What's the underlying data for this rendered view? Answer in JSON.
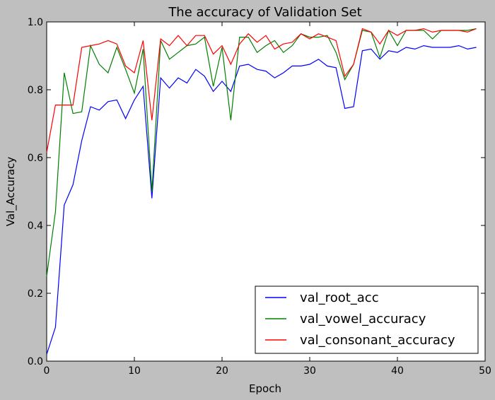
{
  "chart_data": {
    "type": "line",
    "title": "The accuracy of Validation Set",
    "xlabel": "Epoch",
    "ylabel": "Val_Accuracy",
    "xlim": [
      0,
      50
    ],
    "ylim": [
      0.0,
      1.0
    ],
    "xticks": [
      0,
      10,
      20,
      30,
      40,
      50
    ],
    "yticks": [
      0.0,
      0.2,
      0.4,
      0.6,
      0.8,
      1.0
    ],
    "ytick_labels": [
      "0.0",
      "0.2",
      "0.4",
      "0.6",
      "0.8",
      "1.0"
    ],
    "grid": false,
    "legend_position": "bottom-right",
    "x": [
      0,
      1,
      2,
      3,
      4,
      5,
      6,
      7,
      8,
      9,
      10,
      11,
      12,
      13,
      14,
      15,
      16,
      17,
      18,
      19,
      20,
      21,
      22,
      23,
      24,
      25,
      26,
      27,
      28,
      29,
      30,
      31,
      32,
      33,
      34,
      35,
      36,
      37,
      38,
      39,
      40,
      41,
      42,
      43,
      44,
      45,
      46,
      47,
      48,
      49
    ],
    "series": [
      {
        "name": "val_root_acc",
        "color": "#0000ff",
        "values": [
          0.02,
          0.1,
          0.46,
          0.52,
          0.65,
          0.75,
          0.74,
          0.765,
          0.77,
          0.715,
          0.77,
          0.81,
          0.48,
          0.835,
          0.805,
          0.835,
          0.82,
          0.86,
          0.84,
          0.795,
          0.825,
          0.795,
          0.87,
          0.875,
          0.86,
          0.855,
          0.835,
          0.85,
          0.87,
          0.87,
          0.875,
          0.89,
          0.87,
          0.865,
          0.745,
          0.75,
          0.915,
          0.92,
          0.89,
          0.915,
          0.91,
          0.925,
          0.92,
          0.93,
          0.925,
          0.925,
          0.925,
          0.93,
          0.92,
          0.925
        ]
      },
      {
        "name": "val_vowel_accuracy",
        "color": "#008000",
        "values": [
          0.25,
          0.44,
          0.85,
          0.73,
          0.735,
          0.93,
          0.875,
          0.85,
          0.925,
          0.86,
          0.79,
          0.92,
          0.5,
          0.945,
          0.89,
          0.91,
          0.93,
          0.935,
          0.955,
          0.81,
          0.925,
          0.71,
          0.955,
          0.955,
          0.91,
          0.93,
          0.945,
          0.91,
          0.93,
          0.965,
          0.955,
          0.955,
          0.96,
          0.91,
          0.83,
          0.875,
          0.975,
          0.97,
          0.895,
          0.975,
          0.93,
          0.975,
          0.975,
          0.975,
          0.95,
          0.975,
          0.975,
          0.975,
          0.975,
          0.98
        ]
      },
      {
        "name": "val_consonant_accuracy",
        "color": "#ff0000",
        "values": [
          0.615,
          0.755,
          0.755,
          0.755,
          0.925,
          0.93,
          0.935,
          0.945,
          0.935,
          0.87,
          0.85,
          0.945,
          0.71,
          0.95,
          0.93,
          0.96,
          0.93,
          0.96,
          0.96,
          0.905,
          0.93,
          0.875,
          0.935,
          0.965,
          0.94,
          0.96,
          0.92,
          0.935,
          0.94,
          0.965,
          0.95,
          0.965,
          0.955,
          0.945,
          0.84,
          0.875,
          0.98,
          0.97,
          0.935,
          0.975,
          0.96,
          0.975,
          0.975,
          0.98,
          0.97,
          0.975,
          0.975,
          0.975,
          0.97,
          0.98
        ]
      }
    ]
  }
}
